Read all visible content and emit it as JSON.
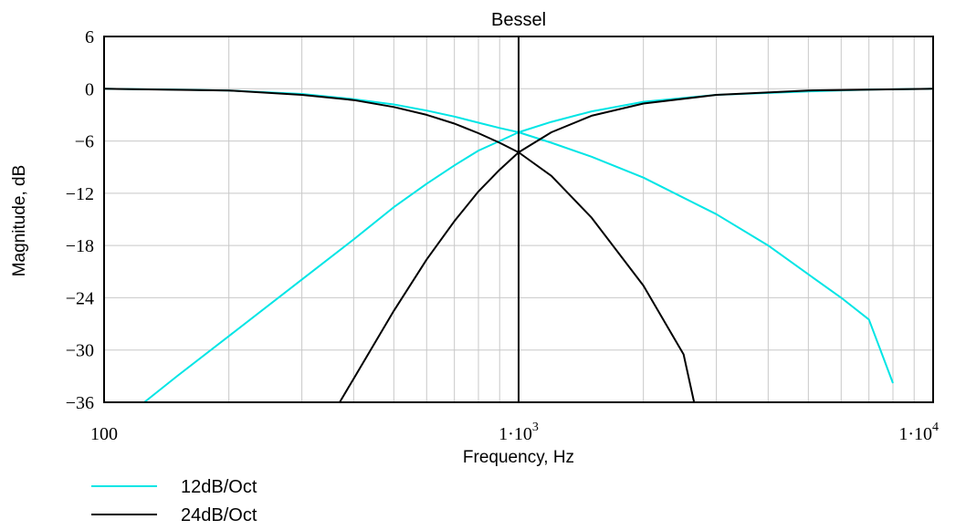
{
  "chart_data": {
    "type": "line",
    "title": "Bessel",
    "xlabel": "Frequency, Hz",
    "ylabel": "Magnitude, dB",
    "x_scale": "log",
    "xlim": [
      100,
      10000
    ],
    "ylim": [
      -36,
      6
    ],
    "grid": true,
    "legend_position": "bottom-left",
    "marker_x": 1000,
    "y_ticks": [
      "6",
      "0",
      "−6",
      "−12",
      "−18",
      "−24",
      "−30",
      "−36"
    ],
    "y_tick_values": [
      6,
      0,
      -6,
      -12,
      -18,
      -24,
      -30,
      -36
    ],
    "x_ticks": [
      {
        "value": 100,
        "base": "100",
        "exp": ""
      },
      {
        "value": 1000,
        "base": "1·10",
        "exp": "3"
      },
      {
        "value": 10000,
        "base": "1·10",
        "exp": "4"
      }
    ],
    "series": [
      {
        "name": "12dB/Oct",
        "color": "#00e5e5",
        "curves": [
          {
            "kind": "lowpass",
            "points": [
              [
                100,
                0
              ],
              [
                150,
                -0.1
              ],
              [
                200,
                -0.2
              ],
              [
                300,
                -0.6
              ],
              [
                400,
                -1.2
              ],
              [
                500,
                -1.8
              ],
              [
                600,
                -2.5
              ],
              [
                700,
                -3.2
              ],
              [
                800,
                -3.9
              ],
              [
                900,
                -4.5
              ],
              [
                1000,
                -5.0
              ],
              [
                1200,
                -6.2
              ],
              [
                1500,
                -7.8
              ],
              [
                2000,
                -10.2
              ],
              [
                3000,
                -14.4
              ],
              [
                4000,
                -18.0
              ],
              [
                5000,
                -21.3
              ],
              [
                6000,
                -24.0
              ],
              [
                7000,
                -26.5
              ],
              [
                8000,
                -33.8
              ]
            ]
          },
          {
            "kind": "highpass",
            "points": [
              [
                125,
                -36
              ],
              [
                150,
                -33.0
              ],
              [
                200,
                -28.4
              ],
              [
                300,
                -21.9
              ],
              [
                400,
                -17.3
              ],
              [
                500,
                -13.6
              ],
              [
                600,
                -10.9
              ],
              [
                700,
                -8.8
              ],
              [
                800,
                -7.1
              ],
              [
                900,
                -6.0
              ],
              [
                1000,
                -5.0
              ],
              [
                1200,
                -3.8
              ],
              [
                1500,
                -2.6
              ],
              [
                2000,
                -1.5
              ],
              [
                3000,
                -0.7
              ],
              [
                5000,
                -0.3
              ],
              [
                7000,
                -0.1
              ],
              [
                10000,
                0
              ]
            ]
          }
        ]
      },
      {
        "name": "24dB/Oct",
        "color": "#000000",
        "curves": [
          {
            "kind": "lowpass",
            "points": [
              [
                100,
                0
              ],
              [
                200,
                -0.2
              ],
              [
                300,
                -0.7
              ],
              [
                400,
                -1.3
              ],
              [
                500,
                -2.1
              ],
              [
                600,
                -3.0
              ],
              [
                700,
                -4.0
              ],
              [
                800,
                -5.1
              ],
              [
                900,
                -6.2
              ],
              [
                1000,
                -7.3
              ],
              [
                1200,
                -10.0
              ],
              [
                1500,
                -14.8
              ],
              [
                2000,
                -22.6
              ],
              [
                2500,
                -30.5
              ],
              [
                2650,
                -36
              ]
            ]
          },
          {
            "kind": "highpass",
            "points": [
              [
                370,
                -36
              ],
              [
                400,
                -33.3
              ],
              [
                500,
                -25.5
              ],
              [
                600,
                -19.6
              ],
              [
                700,
                -15.2
              ],
              [
                800,
                -11.8
              ],
              [
                900,
                -9.3
              ],
              [
                1000,
                -7.3
              ],
              [
                1200,
                -5.0
              ],
              [
                1500,
                -3.1
              ],
              [
                2000,
                -1.7
              ],
              [
                3000,
                -0.7
              ],
              [
                5000,
                -0.2
              ],
              [
                10000,
                0
              ]
            ]
          }
        ]
      }
    ]
  }
}
